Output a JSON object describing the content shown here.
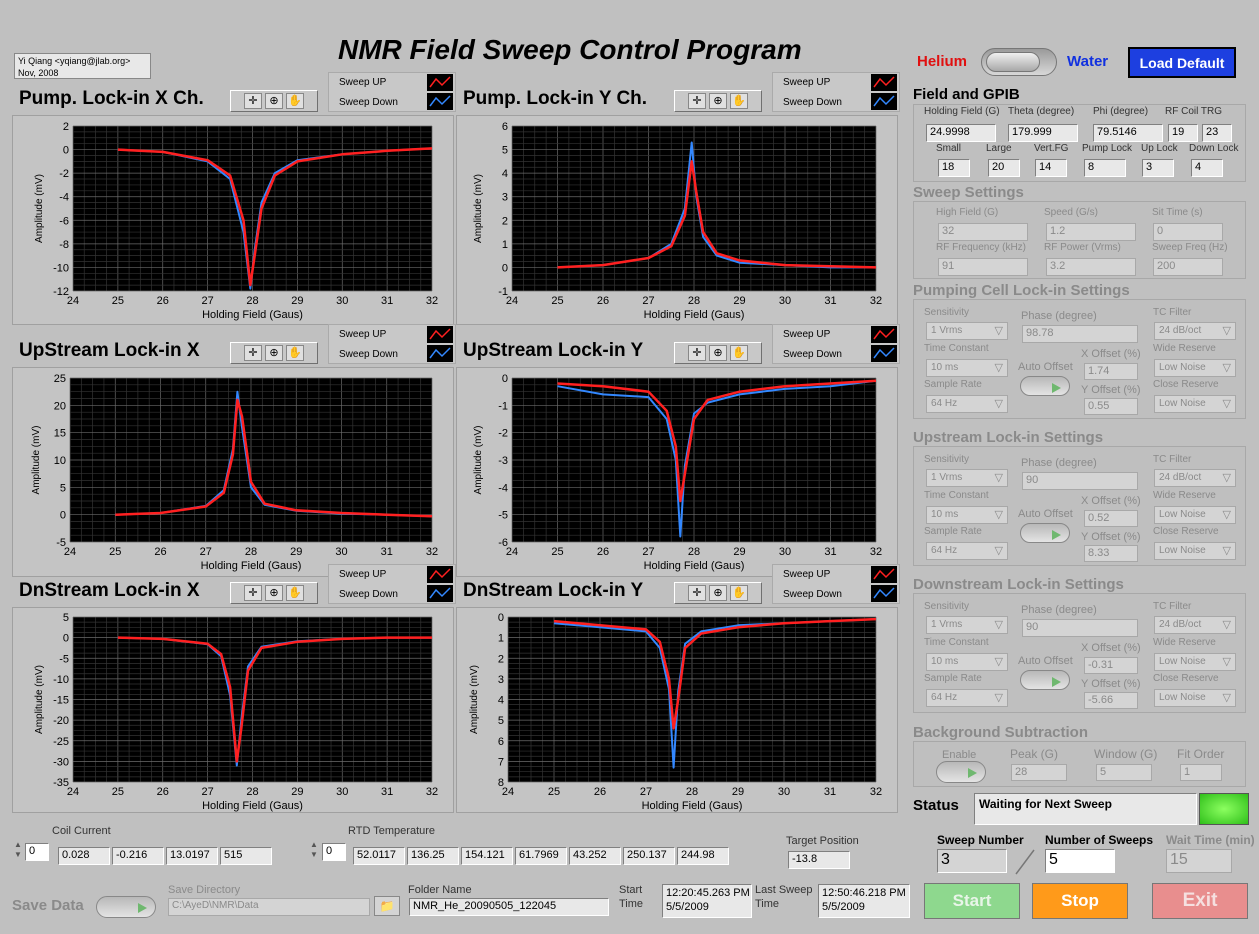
{
  "app_title": "NMR Field Sweep Control Program",
  "author": {
    "line1": "Yi Qiang <yqiang@jlab.org>",
    "line2": "Nov, 2008"
  },
  "gas": {
    "left": "Helium",
    "right": "Water"
  },
  "load_default": "Load Default",
  "legend": {
    "up": "Sweep UP",
    "down": "Sweep Down"
  },
  "colors": {
    "up": "#ff2020",
    "down": "#3388ff",
    "plot_bg": "#000000",
    "grid": "#5a5a5a"
  },
  "plots": [
    {
      "title": "Pump. Lock-in X Ch.",
      "xlabel": "Holding Field (Gaus)",
      "ylabel": "Amplitude (mV)"
    },
    {
      "title": "Pump. Lock-in Y Ch.",
      "xlabel": "Holding Field (Gaus)",
      "ylabel": "Amplitude (mV)"
    },
    {
      "title": "UpStream Lock-in X",
      "xlabel": "Holding Field (Gaus)",
      "ylabel": "Amplitude (mV)"
    },
    {
      "title": "UpStream Lock-in Y",
      "xlabel": "Holding Field (Gaus)",
      "ylabel": "Amplitude (mV)"
    },
    {
      "title": "DnStream Lock-in X",
      "xlabel": "Holding Field (Gaus)",
      "ylabel": "Amplitude (mV)"
    },
    {
      "title": "DnStream Lock-in Y",
      "xlabel": "Holding Field (Gaus)",
      "ylabel": "Amplitude (mV)"
    }
  ],
  "chart_data": [
    {
      "type": "line",
      "title": "Pump. Lock-in X Ch.",
      "xlabel": "Holding Field (Gaus)",
      "ylabel": "Amplitude (mV)",
      "xlim": [
        24,
        32
      ],
      "ylim": [
        -12,
        2
      ],
      "xticks": [
        "24",
        "25",
        "26",
        "27",
        "28",
        "29",
        "30",
        "31",
        "32"
      ],
      "yticks": [
        "2",
        "0",
        "-2",
        "-4",
        "-6",
        "-8",
        "-10",
        "-12"
      ],
      "x": [
        25,
        26,
        27,
        27.5,
        27.8,
        27.95,
        28.05,
        28.2,
        28.5,
        29,
        30,
        31,
        32
      ],
      "series": [
        {
          "name": "Sweep UP",
          "values": [
            0,
            -0.2,
            -0.9,
            -2.2,
            -6,
            -11.5,
            -9,
            -5,
            -2.2,
            -1,
            -0.4,
            -0.1,
            0.1
          ]
        },
        {
          "name": "Sweep Down",
          "values": [
            0,
            -0.2,
            -1,
            -2.5,
            -7,
            -11.8,
            -8.5,
            -4.5,
            -2,
            -0.9,
            -0.4,
            -0.1,
            0.1
          ]
        }
      ],
      "legend": "top-right"
    },
    {
      "type": "line",
      "title": "Pump. Lock-in Y Ch.",
      "xlabel": "Holding Field (Gaus)",
      "ylabel": "Amplitude (mV)",
      "xlim": [
        24,
        32
      ],
      "ylim": [
        -1,
        6
      ],
      "xticks": [
        "24",
        "25",
        "26",
        "27",
        "28",
        "29",
        "30",
        "31",
        "32"
      ],
      "yticks": [
        "6",
        "5",
        "4",
        "3",
        "2",
        "1",
        "0",
        "-1"
      ],
      "x": [
        25,
        26,
        27,
        27.5,
        27.8,
        27.95,
        28.05,
        28.2,
        28.5,
        29,
        30,
        31,
        32
      ],
      "series": [
        {
          "name": "Sweep UP",
          "values": [
            0,
            0.1,
            0.4,
            0.9,
            2.2,
            4.5,
            3.2,
            1.5,
            0.6,
            0.3,
            0.1,
            0.05,
            0
          ]
        },
        {
          "name": "Sweep Down",
          "values": [
            0,
            0.1,
            0.4,
            1,
            2.5,
            5.3,
            3,
            1.3,
            0.5,
            0.2,
            0.1,
            0,
            0
          ]
        }
      ],
      "legend": "top-right"
    },
    {
      "type": "line",
      "title": "UpStream Lock-in X",
      "xlabel": "Holding Field (Gaus)",
      "ylabel": "Amplitude (mV)",
      "xlim": [
        24,
        32
      ],
      "ylim": [
        -5,
        25
      ],
      "xticks": [
        "24",
        "25",
        "26",
        "27",
        "28",
        "29",
        "30",
        "31",
        "32"
      ],
      "yticks": [
        "25",
        "20",
        "15",
        "10",
        "5",
        "0",
        "-5"
      ],
      "x": [
        25,
        26,
        27,
        27.4,
        27.6,
        27.7,
        27.8,
        28,
        28.3,
        29,
        30,
        31,
        32
      ],
      "series": [
        {
          "name": "Sweep UP",
          "values": [
            0,
            0.3,
            1.5,
            4,
            11,
            21,
            18,
            6,
            2,
            0.8,
            0.3,
            0,
            -0.3
          ]
        },
        {
          "name": "Sweep Down",
          "values": [
            0,
            0.3,
            1.6,
            4.5,
            12,
            22.5,
            16,
            5,
            1.8,
            0.7,
            0.2,
            0,
            -0.3
          ]
        }
      ],
      "legend": "top-right"
    },
    {
      "type": "line",
      "title": "UpStream Lock-in Y",
      "xlabel": "Holding Field (Gaus)",
      "ylabel": "Amplitude (mV)",
      "xlim": [
        24,
        32
      ],
      "ylim": [
        -6,
        0
      ],
      "xticks": [
        "24",
        "25",
        "26",
        "27",
        "28",
        "29",
        "30",
        "31",
        "32"
      ],
      "yticks": [
        "0",
        "-1",
        "-2",
        "-3",
        "-4",
        "-5",
        "-6"
      ],
      "x": [
        25,
        26,
        27,
        27.4,
        27.6,
        27.7,
        27.8,
        28,
        28.3,
        29,
        30,
        31,
        32
      ],
      "series": [
        {
          "name": "Sweep UP",
          "values": [
            -0.2,
            -0.3,
            -0.5,
            -1.2,
            -2.5,
            -4.5,
            -3.5,
            -1.5,
            -0.8,
            -0.5,
            -0.3,
            -0.2,
            -0.1
          ]
        },
        {
          "name": "Sweep Down",
          "values": [
            -0.3,
            -0.6,
            -0.7,
            -1.5,
            -3,
            -5.8,
            -3.2,
            -1.3,
            -0.9,
            -0.6,
            -0.4,
            -0.3,
            -0.1
          ]
        }
      ],
      "legend": "top-right"
    },
    {
      "type": "line",
      "title": "DnStream Lock-in X",
      "xlabel": "Holding Field (Gaus)",
      "ylabel": "Amplitude (mV)",
      "xlim": [
        24,
        32
      ],
      "ylim": [
        -35,
        5
      ],
      "xticks": [
        "24",
        "25",
        "26",
        "27",
        "28",
        "29",
        "30",
        "31",
        "32"
      ],
      "yticks": [
        "5",
        "0",
        "-5",
        "-10",
        "-15",
        "-20",
        "-25",
        "-30",
        "-35"
      ],
      "x": [
        25,
        26,
        27,
        27.3,
        27.5,
        27.65,
        27.75,
        27.9,
        28.2,
        29,
        30,
        31,
        32
      ],
      "series": [
        {
          "name": "Sweep UP",
          "values": [
            0,
            -0.3,
            -1.5,
            -4,
            -12,
            -30,
            -22,
            -8,
            -2.5,
            -1,
            -0.3,
            0,
            0
          ]
        },
        {
          "name": "Sweep Down",
          "values": [
            0,
            -0.3,
            -1.6,
            -4.5,
            -14,
            -31,
            -20,
            -7,
            -2.2,
            -0.9,
            -0.3,
            0,
            0
          ]
        }
      ],
      "legend": "top-right"
    },
    {
      "type": "line",
      "title": "DnStream Lock-in Y",
      "xlabel": "Holding Field (Gaus)",
      "ylabel": "Amplitude (mV)",
      "xlim": [
        24,
        32
      ],
      "ylim": [
        0,
        8
      ],
      "yreversed": true,
      "xticks": [
        "24",
        "25",
        "26",
        "27",
        "28",
        "29",
        "30",
        "31",
        "32"
      ],
      "yticks": [
        "0",
        "1",
        "2",
        "3",
        "4",
        "5",
        "6",
        "7",
        "8"
      ],
      "x": [
        25,
        26,
        27,
        27.3,
        27.5,
        27.6,
        27.7,
        27.85,
        28.2,
        29,
        30,
        31,
        32
      ],
      "series": [
        {
          "name": "Sweep UP",
          "values": [
            0.2,
            0.4,
            0.6,
            1.2,
            3,
            5.4,
            4,
            1.5,
            0.8,
            0.5,
            0.3,
            0.2,
            0.1
          ]
        },
        {
          "name": "Sweep Down",
          "values": [
            0.3,
            0.5,
            0.7,
            1.5,
            3.5,
            7.3,
            3.6,
            1.3,
            0.7,
            0.4,
            0.3,
            0.2,
            0.1
          ]
        }
      ],
      "legend": "top-right"
    }
  ],
  "field_gpib": {
    "title": "Field and GPIB",
    "row1": [
      {
        "label": "Holding Field (G)",
        "value": "24.9998"
      },
      {
        "label": "Theta (degree)",
        "value": "179.999"
      },
      {
        "label": "Phi (degree)",
        "value": "79.5146"
      },
      {
        "label": "RF Coil TRG",
        "value": "19",
        "value2": "23"
      }
    ],
    "row2": [
      {
        "label": "Small",
        "value": "18"
      },
      {
        "label": "Large",
        "value": "20"
      },
      {
        "label": "Vert.FG",
        "value": "14"
      },
      {
        "label": "Pump Lock",
        "value": "8"
      },
      {
        "label": "Up Lock",
        "value": "3"
      },
      {
        "label": "Down Lock",
        "value": "4"
      }
    ]
  },
  "sweep": {
    "title": "Sweep Settings",
    "fields": [
      {
        "label": "High Field (G)",
        "value": "32"
      },
      {
        "label": "Speed (G/s)",
        "value": "1.2"
      },
      {
        "label": "Sit Time (s)",
        "value": "0"
      },
      {
        "label": "RF Frequency (kHz)",
        "value": "91"
      },
      {
        "label": "RF Power (Vrms)",
        "value": "3.2"
      },
      {
        "label": "Sweep Freq (Hz)",
        "value": "200"
      }
    ]
  },
  "lockins": [
    {
      "title": "Pumping Cell Lock-in Settings",
      "sensitivity": "1 Vrms",
      "phase": "98.78",
      "tc_filter": "24 dB/oct",
      "time_constant": "10 ms",
      "x_offset": "1.74",
      "wide_reserve": "Low Noise",
      "sample_rate": "64 Hz",
      "y_offset": "0.55",
      "close_reserve": "Low Noise"
    },
    {
      "title": "Upstream Lock-in Settings",
      "sensitivity": "1 Vrms",
      "phase": "90",
      "tc_filter": "24 dB/oct",
      "time_constant": "10 ms",
      "x_offset": "0.52",
      "wide_reserve": "Low Noise",
      "sample_rate": "64 Hz",
      "y_offset": "8.33",
      "close_reserve": "Low Noise"
    },
    {
      "title": "Downstream Lock-in Settings",
      "sensitivity": "1 Vrms",
      "phase": "90",
      "tc_filter": "24 dB/oct",
      "time_constant": "10 ms",
      "x_offset": "-0.31",
      "wide_reserve": "Low Noise",
      "sample_rate": "64 Hz",
      "y_offset": "-5.66",
      "close_reserve": "Low Noise"
    }
  ],
  "lockin_labels": {
    "sensitivity": "Sensitivity",
    "phase": "Phase (degree)",
    "tc_filter": "TC Filter",
    "time_constant": "Time Constant",
    "auto_offset": "Auto Offset",
    "x_offset": "X Offset (%)",
    "wide_reserve": "Wide Reserve",
    "sample_rate": "Sample Rate",
    "y_offset": "Y Offset (%)",
    "close_reserve": "Close Reserve"
  },
  "background": {
    "title": "Background Subtraction",
    "enable": "Enable",
    "peak_label": "Peak (G)",
    "peak": "28",
    "window_label": "Window (G)",
    "window": "5",
    "fit_label": "Fit Order",
    "fit": "1"
  },
  "status": {
    "label": "Status",
    "text": "Waiting for Next Sweep"
  },
  "sweep_number": {
    "label": "Sweep Number",
    "value": "3"
  },
  "num_sweeps": {
    "label": "Number of Sweeps",
    "value": "5"
  },
  "wait_time": {
    "label": "Wait Time (min)",
    "value": "15"
  },
  "buttons": {
    "start": "Start",
    "stop": "Stop",
    "exit": "Exit"
  },
  "coil_current": {
    "label": "Coil Current",
    "index": "0",
    "values": [
      "0.028",
      "-0.216",
      "13.0197",
      "515"
    ]
  },
  "rtd": {
    "label": "RTD Temperature",
    "index": "0",
    "values": [
      "52.0117",
      "136.25",
      "154.121",
      "61.7969",
      "43.252",
      "250.137",
      "244.98"
    ]
  },
  "target": {
    "label": "Target Position",
    "value": "-13.8"
  },
  "save": {
    "label": "Save Data",
    "dir_label": "Save Directory",
    "dir": "C:\\AyeD\\NMR\\Data",
    "folder_label": "Folder Name",
    "folder": "NMR_He_20090505_122045"
  },
  "start_time": {
    "label1": "Start",
    "label2": "Time",
    "time": "12:20:45.263 PM",
    "date": "5/5/2009"
  },
  "last_sweep": {
    "label1": "Last Sweep",
    "label2": "Time",
    "time": "12:50:46.218 PM",
    "date": "5/5/2009"
  }
}
